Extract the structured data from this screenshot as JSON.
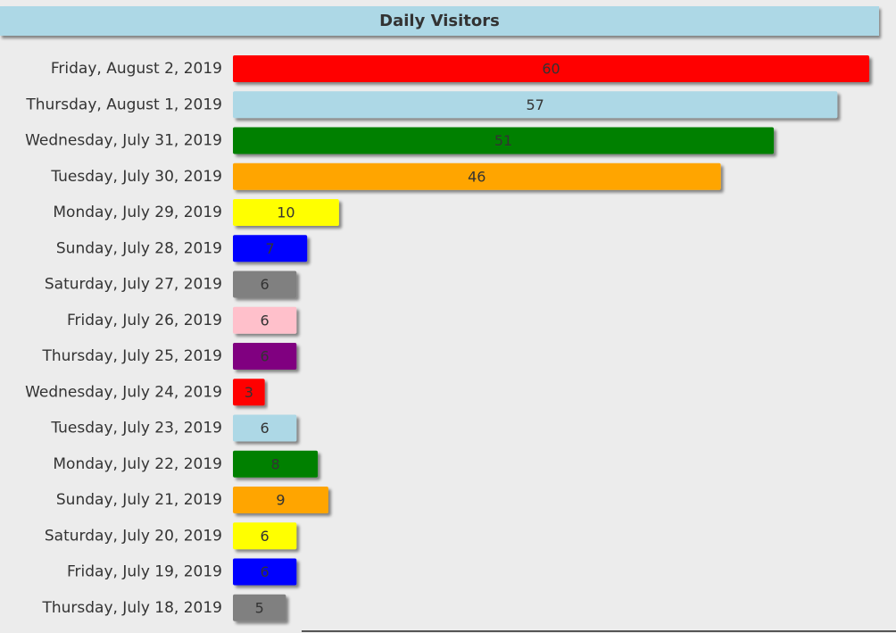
{
  "chart_data": {
    "type": "bar",
    "orientation": "horizontal",
    "title": "Daily Visitors",
    "xlim": [
      0,
      60
    ],
    "grid": false,
    "categories": [
      "Friday, August 2, 2019",
      "Thursday, August 1, 2019",
      "Wednesday, July 31, 2019",
      "Tuesday, July 30, 2019",
      "Monday, July 29, 2019",
      "Sunday, July 28, 2019",
      "Saturday, July 27, 2019",
      "Friday, July 26, 2019",
      "Thursday, July 25, 2019",
      "Wednesday, July 24, 2019",
      "Tuesday, July 23, 2019",
      "Monday, July 22, 2019",
      "Sunday, July 21, 2019",
      "Saturday, July 20, 2019",
      "Friday, July 19, 2019",
      "Thursday, July 18, 2019"
    ],
    "values": [
      60,
      57,
      51,
      46,
      10,
      7,
      6,
      6,
      6,
      3,
      6,
      8,
      9,
      6,
      6,
      5
    ],
    "colors": [
      "#ff0000",
      "#add8e6",
      "#008000",
      "#ffa500",
      "#ffff00",
      "#0000ff",
      "#808080",
      "#ffc0cb",
      "#800080",
      "#ff0000",
      "#add8e6",
      "#008000",
      "#ffa500",
      "#ffff00",
      "#0000ff",
      "#808080"
    ],
    "value_label_color": "#333333"
  }
}
